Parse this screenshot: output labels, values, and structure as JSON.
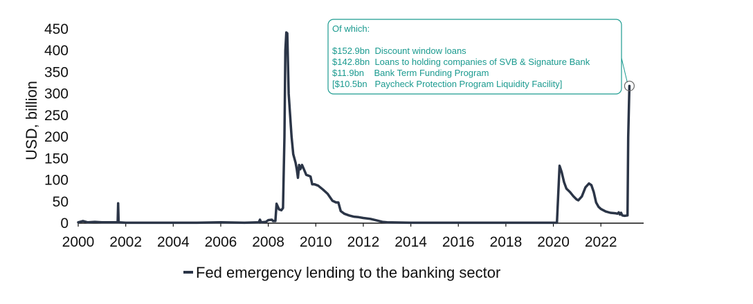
{
  "chart_data": {
    "type": "line",
    "title": "",
    "xlabel": "",
    "ylabel": "USD, billion",
    "xlim": [
      2000,
      2023.8
    ],
    "ylim": [
      0,
      450
    ],
    "x_ticks": [
      "2000",
      "2002",
      "2004",
      "2006",
      "2008",
      "2010",
      "2012",
      "2014",
      "2016",
      "2018",
      "2020",
      "2022"
    ],
    "y_ticks": [
      "0",
      "50",
      "100",
      "150",
      "200",
      "250",
      "300",
      "350",
      "400",
      "450"
    ],
    "grid": false,
    "legend_position": "bottom",
    "colors": {
      "line": "#2b3547",
      "annotation": "#1a9a8f"
    },
    "series": [
      {
        "name": "Fed emergency lending to the banking sector",
        "points": [
          [
            2000.0,
            2
          ],
          [
            2000.2,
            5
          ],
          [
            2000.4,
            2
          ],
          [
            2000.7,
            3
          ],
          [
            2001.0,
            2
          ],
          [
            2001.3,
            2
          ],
          [
            2001.66,
            2
          ],
          [
            2001.68,
            46
          ],
          [
            2001.7,
            2
          ],
          [
            2002.0,
            1
          ],
          [
            2003.0,
            1
          ],
          [
            2004.0,
            1
          ],
          [
            2005.0,
            1
          ],
          [
            2006.0,
            2
          ],
          [
            2007.0,
            1
          ],
          [
            2007.6,
            2
          ],
          [
            2007.65,
            8
          ],
          [
            2007.7,
            2
          ],
          [
            2007.9,
            3
          ],
          [
            2008.0,
            7
          ],
          [
            2008.15,
            8
          ],
          [
            2008.2,
            5
          ],
          [
            2008.3,
            5
          ],
          [
            2008.35,
            45
          ],
          [
            2008.45,
            32
          ],
          [
            2008.55,
            30
          ],
          [
            2008.62,
            35
          ],
          [
            2008.68,
            200
          ],
          [
            2008.72,
            400
          ],
          [
            2008.76,
            442
          ],
          [
            2008.8,
            440
          ],
          [
            2008.86,
            300
          ],
          [
            2008.92,
            250
          ],
          [
            2008.98,
            200
          ],
          [
            2009.05,
            160
          ],
          [
            2009.1,
            150
          ],
          [
            2009.15,
            140
          ],
          [
            2009.2,
            125
          ],
          [
            2009.25,
            105
          ],
          [
            2009.3,
            135
          ],
          [
            2009.35,
            125
          ],
          [
            2009.42,
            135
          ],
          [
            2009.5,
            125
          ],
          [
            2009.6,
            112
          ],
          [
            2009.7,
            110
          ],
          [
            2009.78,
            108
          ],
          [
            2009.85,
            90
          ],
          [
            2009.95,
            90
          ],
          [
            2010.1,
            87
          ],
          [
            2010.3,
            78
          ],
          [
            2010.5,
            68
          ],
          [
            2010.7,
            52
          ],
          [
            2010.85,
            48
          ],
          [
            2010.95,
            48
          ],
          [
            2011.05,
            28
          ],
          [
            2011.2,
            22
          ],
          [
            2011.4,
            18
          ],
          [
            2011.6,
            15
          ],
          [
            2011.8,
            14
          ],
          [
            2012.0,
            12
          ],
          [
            2012.3,
            10
          ],
          [
            2012.6,
            6
          ],
          [
            2012.8,
            3
          ],
          [
            2013.0,
            2
          ],
          [
            2014.0,
            1
          ],
          [
            2016.0,
            1
          ],
          [
            2018.0,
            1
          ],
          [
            2019.0,
            1
          ],
          [
            2020.15,
            1
          ],
          [
            2020.2,
            60
          ],
          [
            2020.26,
            133
          ],
          [
            2020.35,
            118
          ],
          [
            2020.45,
            95
          ],
          [
            2020.55,
            80
          ],
          [
            2020.7,
            72
          ],
          [
            2020.85,
            62
          ],
          [
            2020.98,
            55
          ],
          [
            2021.05,
            53
          ],
          [
            2021.2,
            62
          ],
          [
            2021.35,
            83
          ],
          [
            2021.5,
            92
          ],
          [
            2021.6,
            88
          ],
          [
            2021.7,
            72
          ],
          [
            2021.8,
            48
          ],
          [
            2021.9,
            38
          ],
          [
            2022.0,
            33
          ],
          [
            2022.2,
            27
          ],
          [
            2022.4,
            24
          ],
          [
            2022.6,
            23
          ],
          [
            2022.7,
            22
          ],
          [
            2022.75,
            25
          ],
          [
            2022.8,
            20
          ],
          [
            2022.85,
            24
          ],
          [
            2022.9,
            18
          ],
          [
            2023.0,
            17
          ],
          [
            2023.12,
            18
          ],
          [
            2023.15,
            200
          ],
          [
            2023.2,
            318
          ]
        ]
      }
    ],
    "annotation": {
      "heading": "Of which:",
      "lines": [
        "$152.9bn  Discount window loans",
        "$142.8bn  Loans to holding companies of SVB & Signature Bank",
        "$11.9bn    Bank Term Funding Program",
        "[$10.5bn   Paycheck Protection Program Liquidity Facility]"
      ],
      "target_point": [
        2023.2,
        318
      ]
    }
  }
}
